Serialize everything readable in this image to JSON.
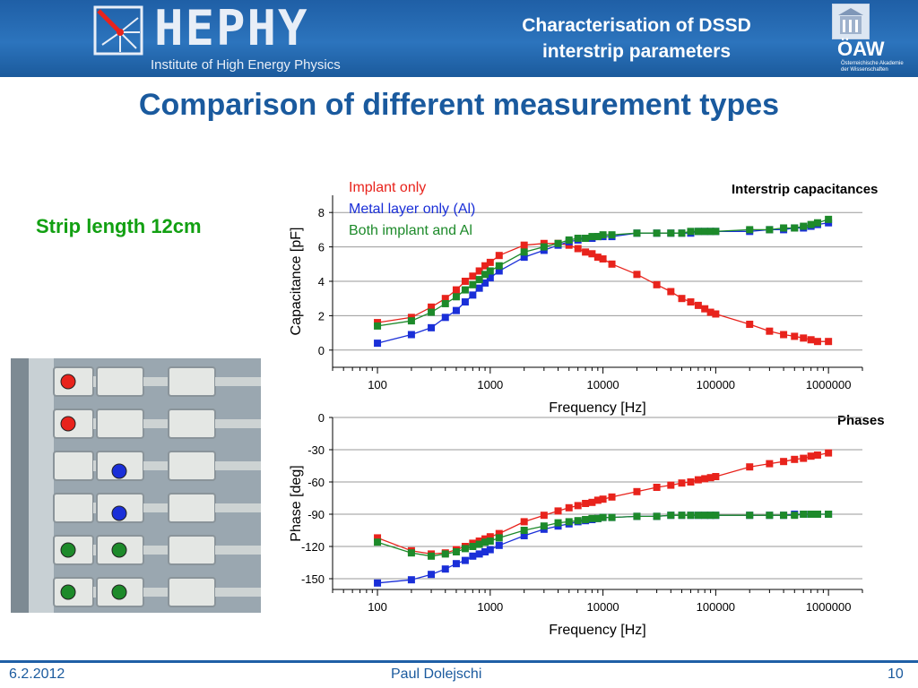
{
  "header": {
    "logo_text": "HEPHY",
    "logo_subtitle": "Institute of High Energy Physics",
    "title_line1": "Characterisation of DSSD",
    "title_line2": "interstrip parameters",
    "oaw_text": "ÖAW",
    "oaw_subtitle_line1": "Österreichische Akademie",
    "oaw_subtitle_line2": "der Wissenschaften"
  },
  "slide": {
    "title": "Comparison of different measurement types",
    "strip_length": "Strip length 12cm"
  },
  "photo": {
    "markers": [
      "red",
      "red",
      "blue",
      "blue",
      "green-green",
      "green-green"
    ],
    "colors": {
      "red": "#e8231c",
      "blue": "#1a2fd8",
      "green": "#1d8a2a"
    }
  },
  "footer": {
    "date": "6.2.2012",
    "author": "Paul Dolejschi",
    "page": "10"
  },
  "chart_data": [
    {
      "type": "line",
      "title": "Interstrip capacitances",
      "xlabel": "Frequency [Hz]",
      "ylabel": "Capacitance [pF]",
      "xscale": "log",
      "xlim": [
        40,
        2000000
      ],
      "ylim": [
        -1,
        9
      ],
      "xticks": [
        "100",
        "1000",
        "10000",
        "100000",
        "1000000"
      ],
      "yticks": [
        "0",
        "2",
        "4",
        "6",
        "8"
      ],
      "grid": "horizontal",
      "legend_position": "top-left",
      "x": [
        100,
        200,
        300,
        400,
        500,
        600,
        700,
        800,
        900,
        1000,
        1200,
        2000,
        3000,
        4000,
        5000,
        6000,
        7000,
        8000,
        9000,
        10000,
        12000,
        20000,
        30000,
        40000,
        50000,
        60000,
        70000,
        80000,
        90000,
        100000,
        200000,
        300000,
        400000,
        500000,
        600000,
        700000,
        800000,
        1000000
      ],
      "series": [
        {
          "name": "Implant only",
          "color": "#e8231c",
          "values": [
            1.6,
            1.9,
            2.5,
            3.0,
            3.5,
            4.0,
            4.3,
            4.6,
            4.9,
            5.1,
            5.5,
            6.1,
            6.2,
            6.2,
            6.1,
            5.9,
            5.7,
            5.6,
            5.4,
            5.3,
            5.0,
            4.4,
            3.8,
            3.4,
            3.0,
            2.8,
            2.6,
            2.4,
            2.2,
            2.1,
            1.5,
            1.1,
            0.9,
            0.8,
            0.7,
            0.6,
            0.5,
            0.5
          ]
        },
        {
          "name": "Metal layer only (Al)",
          "color": "#1a2fd8",
          "values": [
            0.4,
            0.9,
            1.3,
            1.9,
            2.3,
            2.8,
            3.2,
            3.6,
            3.9,
            4.2,
            4.6,
            5.4,
            5.8,
            6.1,
            6.3,
            6.4,
            6.5,
            6.5,
            6.6,
            6.6,
            6.6,
            6.8,
            6.8,
            6.8,
            6.8,
            6.8,
            6.9,
            6.9,
            6.9,
            6.9,
            6.9,
            7.0,
            7.0,
            7.1,
            7.1,
            7.2,
            7.3,
            7.4
          ]
        },
        {
          "name": "Both implant and Al",
          "color": "#1d8a2a",
          "values": [
            1.4,
            1.7,
            2.2,
            2.7,
            3.1,
            3.5,
            3.8,
            4.1,
            4.4,
            4.6,
            4.9,
            5.7,
            6.0,
            6.2,
            6.4,
            6.5,
            6.5,
            6.6,
            6.6,
            6.7,
            6.7,
            6.8,
            6.8,
            6.8,
            6.8,
            6.9,
            6.9,
            6.9,
            6.9,
            6.9,
            7.0,
            7.0,
            7.1,
            7.1,
            7.2,
            7.3,
            7.4,
            7.6
          ]
        }
      ]
    },
    {
      "type": "line",
      "title": "Phases",
      "xlabel": "Frequency [Hz]",
      "ylabel": "Phase [deg]",
      "xscale": "log",
      "xlim": [
        40,
        2000000
      ],
      "ylim": [
        -160,
        0
      ],
      "xticks": [
        "100",
        "1000",
        "10000",
        "100000",
        "1000000"
      ],
      "yticks": [
        "0",
        "-30",
        "-60",
        "-90",
        "-120",
        "-150"
      ],
      "grid": "horizontal",
      "x": [
        100,
        200,
        300,
        400,
        500,
        600,
        700,
        800,
        900,
        1000,
        1200,
        2000,
        3000,
        4000,
        5000,
        6000,
        7000,
        8000,
        9000,
        10000,
        12000,
        20000,
        30000,
        40000,
        50000,
        60000,
        70000,
        80000,
        90000,
        100000,
        200000,
        300000,
        400000,
        500000,
        600000,
        700000,
        800000,
        1000000
      ],
      "series": [
        {
          "name": "Implant only",
          "color": "#e8231c",
          "values": [
            -112,
            -124,
            -127,
            -126,
            -123,
            -120,
            -117,
            -115,
            -113,
            -111,
            -108,
            -97,
            -91,
            -87,
            -84,
            -82,
            -80,
            -79,
            -77,
            -76,
            -74,
            -69,
            -65,
            -63,
            -61,
            -60,
            -58,
            -57,
            -56,
            -55,
            -46,
            -43,
            -41,
            -39,
            -38,
            -36,
            -35,
            -33
          ]
        },
        {
          "name": "Metal layer only (Al)",
          "color": "#1a2fd8",
          "values": [
            -154,
            -151,
            -146,
            -141,
            -136,
            -133,
            -129,
            -127,
            -125,
            -123,
            -119,
            -110,
            -104,
            -101,
            -99,
            -97,
            -96,
            -95,
            -94,
            -93,
            -93,
            -92,
            -92,
            -91,
            -91,
            -91,
            -91,
            -91,
            -91,
            -91,
            -91,
            -91,
            -91,
            -90,
            -90,
            -90,
            -90,
            -90
          ]
        },
        {
          "name": "Both implant and Al",
          "color": "#1d8a2a",
          "values": [
            -116,
            -126,
            -129,
            -127,
            -125,
            -122,
            -120,
            -118,
            -116,
            -115,
            -112,
            -105,
            -101,
            -98,
            -97,
            -96,
            -95,
            -94,
            -94,
            -93,
            -93,
            -92,
            -92,
            -91,
            -91,
            -91,
            -91,
            -91,
            -91,
            -91,
            -91,
            -91,
            -91,
            -91,
            -90,
            -90,
            -90,
            -90
          ]
        }
      ]
    }
  ]
}
